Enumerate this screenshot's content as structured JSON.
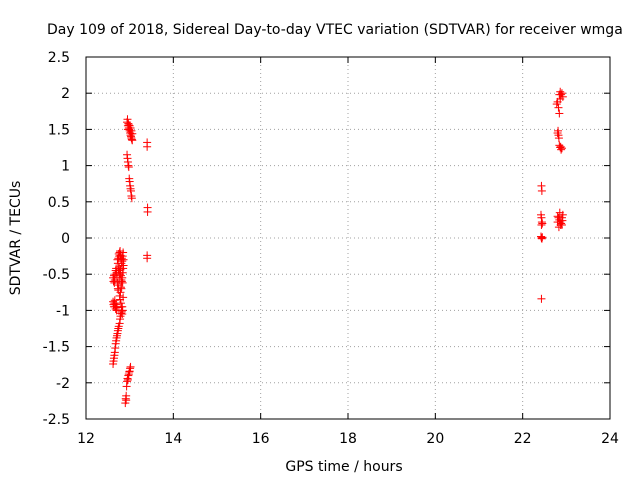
{
  "chart_data": {
    "type": "scatter",
    "title": "Day 109 of 2018, Sidereal Day-to-day VTEC variation (SDTVAR) for receiver wmga",
    "xlabel": "GPS time / hours",
    "ylabel": "SDTVAR / TECUs",
    "xlim": [
      12,
      24
    ],
    "ylim": [
      -2.5,
      2.5
    ],
    "xticks": [
      12,
      14,
      16,
      18,
      20,
      22,
      24
    ],
    "yticks": [
      -2.5,
      -2,
      -1.5,
      -1,
      -0.5,
      0,
      0.5,
      1,
      1.5,
      2,
      2.5
    ],
    "xtick_labels": [
      "12",
      "14",
      "16",
      "18",
      "20",
      "22",
      "24"
    ],
    "ytick_labels": [
      "-2.5",
      "-2",
      "-1.5",
      "-1",
      "-0.5",
      "0",
      "0.5",
      "1",
      "1.5",
      "2",
      "2.5"
    ],
    "grid": true,
    "marker": "+",
    "color": "#ff0000",
    "series": [
      {
        "name": "wmga",
        "points": [
          [
            12.62,
            -1.74
          ],
          [
            12.63,
            -1.7
          ],
          [
            12.64,
            -1.66
          ],
          [
            12.65,
            -1.62
          ],
          [
            12.66,
            -1.58
          ],
          [
            12.67,
            -1.52
          ],
          [
            12.68,
            -1.46
          ],
          [
            12.69,
            -1.42
          ],
          [
            12.7,
            -1.38
          ],
          [
            12.71,
            -1.35
          ],
          [
            12.72,
            -1.32
          ],
          [
            12.73,
            -1.28
          ],
          [
            12.74,
            -1.25
          ],
          [
            12.75,
            -1.22
          ],
          [
            12.77,
            -1.18
          ],
          [
            12.78,
            -1.12
          ],
          [
            12.79,
            -1.08
          ],
          [
            12.8,
            -1.04
          ],
          [
            12.82,
            -1.0
          ],
          [
            12.83,
            -0.95
          ],
          [
            12.62,
            -0.88
          ],
          [
            12.63,
            -0.92
          ],
          [
            12.64,
            -0.95
          ],
          [
            12.65,
            -0.9
          ],
          [
            12.66,
            -0.86
          ],
          [
            12.67,
            -0.95
          ],
          [
            12.68,
            -0.98
          ],
          [
            12.69,
            -0.92
          ],
          [
            12.7,
            -1.0
          ],
          [
            12.71,
            -0.96
          ],
          [
            12.62,
            -0.55
          ],
          [
            12.63,
            -0.6
          ],
          [
            12.64,
            -0.52
          ],
          [
            12.65,
            -0.62
          ],
          [
            12.66,
            -0.58
          ],
          [
            12.67,
            -0.5
          ],
          [
            12.68,
            -0.45
          ],
          [
            12.69,
            -0.42
          ],
          [
            12.7,
            -0.48
          ],
          [
            12.71,
            -0.55
          ],
          [
            12.72,
            -0.62
          ],
          [
            12.73,
            -0.7
          ],
          [
            12.74,
            -0.72
          ],
          [
            12.75,
            -0.65
          ],
          [
            12.76,
            -0.58
          ],
          [
            12.77,
            -0.8
          ],
          [
            12.78,
            -0.85
          ],
          [
            12.79,
            -0.75
          ],
          [
            12.8,
            -0.68
          ],
          [
            12.81,
            -0.7
          ],
          [
            12.72,
            -0.3
          ],
          [
            12.73,
            -0.35
          ],
          [
            12.74,
            -0.28
          ],
          [
            12.75,
            -0.22
          ],
          [
            12.76,
            -0.25
          ],
          [
            12.77,
            -0.2
          ],
          [
            12.78,
            -0.18
          ],
          [
            12.79,
            -0.24
          ],
          [
            12.8,
            -0.3
          ],
          [
            12.81,
            -0.35
          ],
          [
            12.82,
            -0.28
          ],
          [
            12.83,
            -0.32
          ],
          [
            12.84,
            -0.25
          ],
          [
            12.85,
            -0.2
          ],
          [
            12.86,
            -0.3
          ],
          [
            12.74,
            -0.42
          ],
          [
            12.75,
            -0.45
          ],
          [
            12.76,
            -0.4
          ],
          [
            12.77,
            -0.48
          ],
          [
            12.78,
            -0.5
          ],
          [
            12.79,
            -0.44
          ],
          [
            12.8,
            -0.52
          ],
          [
            12.81,
            -0.58
          ],
          [
            12.82,
            -0.6
          ],
          [
            12.83,
            -0.55
          ],
          [
            12.84,
            -0.48
          ],
          [
            12.85,
            -0.42
          ],
          [
            12.86,
            -0.38
          ],
          [
            12.84,
            -0.62
          ],
          [
            12.85,
            -0.82
          ],
          [
            12.8,
            -0.9
          ],
          [
            12.81,
            -0.95
          ],
          [
            12.82,
            -1.02
          ],
          [
            12.83,
            -1.05
          ],
          [
            12.84,
            -1.0
          ],
          [
            12.9,
            -2.28
          ],
          [
            12.91,
            -2.22
          ],
          [
            12.92,
            -2.18
          ],
          [
            12.93,
            -2.05
          ],
          [
            12.94,
            -1.98
          ],
          [
            12.95,
            -1.94
          ],
          [
            12.96,
            -1.96
          ],
          [
            12.97,
            -1.9
          ],
          [
            12.98,
            -1.88
          ],
          [
            12.99,
            -1.85
          ],
          [
            13.0,
            -1.84
          ],
          [
            13.01,
            -1.8
          ],
          [
            13.02,
            -1.78
          ],
          [
            12.92,
            -2.24
          ],
          [
            12.94,
            1.6
          ],
          [
            12.95,
            1.64
          ],
          [
            12.96,
            1.55
          ],
          [
            12.97,
            1.58
          ],
          [
            12.98,
            1.52
          ],
          [
            12.99,
            1.5
          ],
          [
            13.0,
            1.48
          ],
          [
            13.01,
            1.45
          ],
          [
            13.02,
            1.42
          ],
          [
            13.03,
            1.4
          ],
          [
            13.04,
            1.38
          ],
          [
            13.05,
            1.36
          ],
          [
            13.06,
            1.35
          ],
          [
            12.96,
            1.5
          ],
          [
            12.98,
            1.56
          ],
          [
            13.0,
            1.55
          ],
          [
            13.02,
            1.52
          ],
          [
            13.04,
            1.48
          ],
          [
            13.06,
            1.44
          ],
          [
            12.94,
            1.15
          ],
          [
            12.95,
            1.1
          ],
          [
            12.96,
            1.05
          ],
          [
            12.97,
            1.0
          ],
          [
            12.98,
            0.98
          ],
          [
            12.99,
            0.82
          ],
          [
            13.0,
            0.78
          ],
          [
            13.01,
            0.72
          ],
          [
            13.02,
            0.68
          ],
          [
            13.03,
            0.65
          ],
          [
            13.04,
            0.58
          ],
          [
            13.05,
            0.55
          ],
          [
            13.4,
            1.32
          ],
          [
            13.4,
            1.26
          ],
          [
            13.41,
            0.42
          ],
          [
            13.41,
            0.36
          ],
          [
            13.4,
            -0.24
          ],
          [
            13.4,
            -0.28
          ],
          [
            22.43,
            0.72
          ],
          [
            22.44,
            0.65
          ],
          [
            22.43,
            -0.84
          ],
          [
            22.42,
            0.32
          ],
          [
            22.43,
            0.28
          ],
          [
            22.44,
            0.22
          ],
          [
            22.45,
            0.2
          ],
          [
            22.43,
            0.18
          ],
          [
            22.42,
            0.02
          ],
          [
            22.43,
            0.0
          ],
          [
            22.44,
            -0.01
          ],
          [
            22.45,
            0.01
          ],
          [
            22.78,
            1.85
          ],
          [
            22.8,
            1.88
          ],
          [
            22.82,
            1.8
          ],
          [
            22.84,
            1.72
          ],
          [
            22.86,
            1.92
          ],
          [
            22.88,
            1.98
          ],
          [
            22.9,
            2.0
          ],
          [
            22.92,
            1.95
          ],
          [
            22.84,
            1.98
          ],
          [
            22.86,
            2.02
          ],
          [
            22.8,
            1.45
          ],
          [
            22.82,
            1.42
          ],
          [
            22.81,
            1.48
          ],
          [
            22.83,
            1.38
          ],
          [
            22.84,
            1.28
          ],
          [
            22.86,
            1.25
          ],
          [
            22.88,
            1.22
          ],
          [
            22.9,
            1.24
          ],
          [
            22.87,
            1.26
          ],
          [
            22.8,
            0.3
          ],
          [
            22.82,
            0.28
          ],
          [
            22.84,
            0.25
          ],
          [
            22.86,
            0.22
          ],
          [
            22.88,
            0.2
          ],
          [
            22.9,
            0.18
          ],
          [
            22.92,
            0.32
          ],
          [
            22.85,
            0.35
          ],
          [
            22.83,
            0.15
          ],
          [
            22.87,
            0.18
          ],
          [
            22.9,
            0.28
          ],
          [
            22.8,
            0.22
          ],
          [
            22.91,
            0.24
          ]
        ]
      }
    ]
  }
}
